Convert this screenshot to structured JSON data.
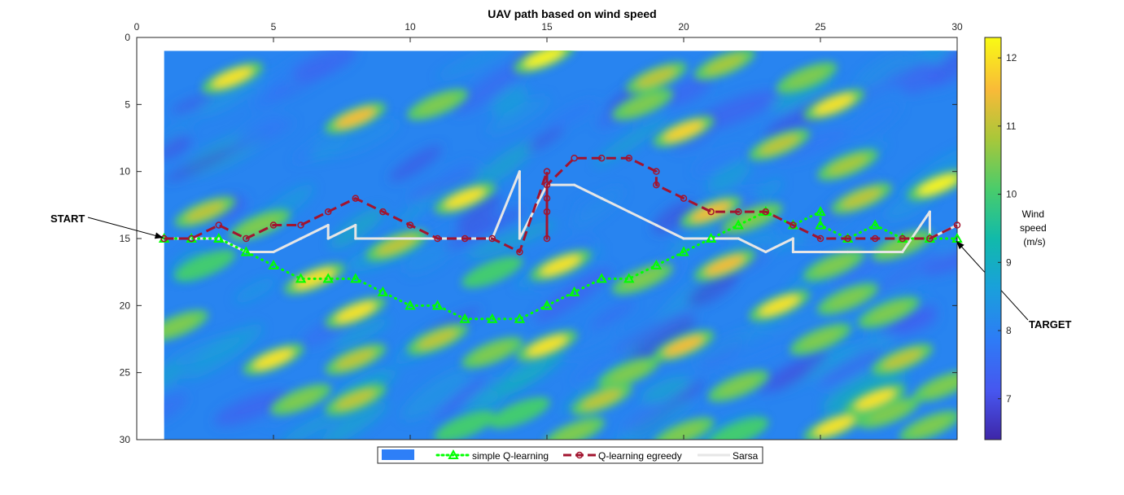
{
  "chart_data": {
    "type": "heatmap",
    "title": "UAV path based on wind speed",
    "xlim": [
      0,
      30
    ],
    "ylim": [
      0,
      30
    ],
    "y_reversed": true,
    "x_axis_location": "top",
    "x_ticks": [
      0,
      5,
      10,
      15,
      20,
      25,
      30
    ],
    "y_ticks": [
      0,
      5,
      10,
      15,
      20,
      25,
      30
    ],
    "heatmap_extent": {
      "x": [
        1,
        30
      ],
      "y": [
        1,
        30
      ]
    },
    "colorbar": {
      "label_lines": [
        "Wind",
        "speed",
        "(m/s)"
      ],
      "range": [
        6.4,
        12.3
      ],
      "ticks": [
        7,
        8,
        9,
        10,
        11,
        12
      ],
      "colormap": "parula"
    },
    "wind_hotspots": [
      {
        "x": 3.5,
        "y": 3,
        "v": 12.0
      },
      {
        "x": 14.9,
        "y": 1.5,
        "v": 12.2
      },
      {
        "x": 11,
        "y": 5,
        "v": 10.5
      },
      {
        "x": 8,
        "y": 6,
        "v": 11.5
      },
      {
        "x": 19,
        "y": 3,
        "v": 11.0
      },
      {
        "x": 21.5,
        "y": 2,
        "v": 10.8
      },
      {
        "x": 25.5,
        "y": 5,
        "v": 12.0
      },
      {
        "x": 20,
        "y": 7,
        "v": 11.8
      },
      {
        "x": 24.5,
        "y": 3,
        "v": 10.5
      },
      {
        "x": 23.5,
        "y": 8,
        "v": 11.0
      },
      {
        "x": 26,
        "y": 9.5,
        "v": 10.8
      },
      {
        "x": 29.3,
        "y": 11,
        "v": 12.2
      },
      {
        "x": 18.5,
        "y": 5,
        "v": 10.5
      },
      {
        "x": 12,
        "y": 12,
        "v": 12.0
      },
      {
        "x": 2.5,
        "y": 13,
        "v": 11.0
      },
      {
        "x": 4.5,
        "y": 14,
        "v": 10.5
      },
      {
        "x": 9.5,
        "y": 15.5,
        "v": 11.0
      },
      {
        "x": 6.5,
        "y": 18,
        "v": 12.0
      },
      {
        "x": 2.5,
        "y": 17,
        "v": 10.0
      },
      {
        "x": 15.5,
        "y": 17,
        "v": 12.0
      },
      {
        "x": 21,
        "y": 13,
        "v": 11.5
      },
      {
        "x": 22.5,
        "y": 13.5,
        "v": 10.5
      },
      {
        "x": 26.5,
        "y": 12,
        "v": 11.0
      },
      {
        "x": 21.5,
        "y": 17,
        "v": 11.5
      },
      {
        "x": 28,
        "y": 15.5,
        "v": 10.5
      },
      {
        "x": 25.5,
        "y": 17,
        "v": 10.5
      },
      {
        "x": 13,
        "y": 17.5,
        "v": 10.0
      },
      {
        "x": 8,
        "y": 20.5,
        "v": 12.0
      },
      {
        "x": 23.5,
        "y": 20,
        "v": 12.0
      },
      {
        "x": 26,
        "y": 19.5,
        "v": 10.5
      },
      {
        "x": 27.5,
        "y": 20.5,
        "v": 10.5
      },
      {
        "x": 18.5,
        "y": 18,
        "v": 10.5
      },
      {
        "x": 5,
        "y": 24,
        "v": 12.0
      },
      {
        "x": 11,
        "y": 22.5,
        "v": 11.0
      },
      {
        "x": 15,
        "y": 23,
        "v": 12.0
      },
      {
        "x": 13,
        "y": 23.5,
        "v": 10.5
      },
      {
        "x": 1.5,
        "y": 21.5,
        "v": 10.5
      },
      {
        "x": 8,
        "y": 24,
        "v": 11.0
      },
      {
        "x": 20,
        "y": 23,
        "v": 11.5
      },
      {
        "x": 25,
        "y": 22.5,
        "v": 10.5
      },
      {
        "x": 18,
        "y": 25,
        "v": 10.5
      },
      {
        "x": 22,
        "y": 26,
        "v": 10.5
      },
      {
        "x": 28,
        "y": 24,
        "v": 11.0
      },
      {
        "x": 27,
        "y": 27,
        "v": 12.0
      },
      {
        "x": 29.5,
        "y": 26,
        "v": 10.5
      },
      {
        "x": 6,
        "y": 27,
        "v": 10.5
      },
      {
        "x": 8,
        "y": 27,
        "v": 11.0
      },
      {
        "x": 17,
        "y": 27,
        "v": 11.0
      },
      {
        "x": 25.5,
        "y": 29,
        "v": 12.0
      },
      {
        "x": 16,
        "y": 29.5,
        "v": 10.5
      },
      {
        "x": 20,
        "y": 29.5,
        "v": 10.5
      },
      {
        "x": 29,
        "y": 29,
        "v": 10.5
      },
      {
        "x": 14,
        "y": 28,
        "v": 10.0
      },
      {
        "x": 27.5,
        "y": 28,
        "v": 10.5
      },
      {
        "x": 12,
        "y": 29,
        "v": 10.0
      },
      {
        "x": 22,
        "y": 29.5,
        "v": 10.0
      }
    ],
    "series": [
      {
        "name": "simple Q-learning",
        "color": "#00ff00",
        "style": "dotted",
        "marker": "triangle",
        "points": [
          [
            1,
            15
          ],
          [
            2,
            15
          ],
          [
            3,
            15
          ],
          [
            4,
            16
          ],
          [
            5,
            17
          ],
          [
            6,
            18
          ],
          [
            7,
            18
          ],
          [
            8,
            18
          ],
          [
            9,
            19
          ],
          [
            10,
            20
          ],
          [
            11,
            20
          ],
          [
            12,
            21
          ],
          [
            13,
            21
          ],
          [
            14,
            21
          ],
          [
            15,
            20
          ],
          [
            16,
            19
          ],
          [
            17,
            18
          ],
          [
            18,
            18
          ],
          [
            19,
            17
          ],
          [
            20,
            16
          ],
          [
            21,
            15
          ],
          [
            22,
            14
          ],
          [
            23,
            13
          ],
          [
            24,
            14
          ],
          [
            25,
            13
          ],
          [
            25,
            14
          ],
          [
            26,
            15
          ],
          [
            27,
            14
          ],
          [
            28,
            15
          ],
          [
            29,
            15
          ],
          [
            30,
            15
          ]
        ]
      },
      {
        "name": "Q-learning egreedy",
        "color": "#a2142f",
        "style": "dashed",
        "marker": "hexagram",
        "points": [
          [
            1,
            15
          ],
          [
            2,
            15
          ],
          [
            3,
            14
          ],
          [
            4,
            15
          ],
          [
            5,
            14
          ],
          [
            6,
            14
          ],
          [
            7,
            13
          ],
          [
            8,
            12
          ],
          [
            9,
            13
          ],
          [
            10,
            14
          ],
          [
            11,
            15
          ],
          [
            12,
            15
          ],
          [
            13,
            15
          ],
          [
            14,
            16
          ],
          [
            15,
            10
          ],
          [
            15,
            12
          ],
          [
            15,
            15
          ],
          [
            15,
            13
          ],
          [
            15,
            11
          ],
          [
            16,
            9
          ],
          [
            17,
            9
          ],
          [
            18,
            9
          ],
          [
            19,
            10
          ],
          [
            19,
            11
          ],
          [
            20,
            12
          ],
          [
            21,
            13
          ],
          [
            22,
            13
          ],
          [
            23,
            13
          ],
          [
            24,
            14
          ],
          [
            25,
            15
          ],
          [
            26,
            15
          ],
          [
            27,
            15
          ],
          [
            28,
            15
          ],
          [
            29,
            15
          ],
          [
            30,
            14
          ]
        ]
      },
      {
        "name": "Sarsa",
        "color": "#e6e6e6",
        "style": "solid",
        "marker": "point",
        "points": [
          [
            1,
            15
          ],
          [
            2,
            15
          ],
          [
            3,
            15
          ],
          [
            4,
            16
          ],
          [
            5,
            16
          ],
          [
            6,
            15
          ],
          [
            7,
            14
          ],
          [
            7,
            15
          ],
          [
            8,
            14
          ],
          [
            8,
            15
          ],
          [
            9,
            15
          ],
          [
            10,
            15
          ],
          [
            11,
            15
          ],
          [
            12,
            15
          ],
          [
            13,
            15
          ],
          [
            14,
            10
          ],
          [
            14,
            15
          ],
          [
            15,
            11
          ],
          [
            16,
            11
          ],
          [
            17,
            12
          ],
          [
            18,
            13
          ],
          [
            19,
            14
          ],
          [
            20,
            15
          ],
          [
            21,
            15
          ],
          [
            22,
            15
          ],
          [
            23,
            16
          ],
          [
            24,
            15
          ],
          [
            24,
            16
          ],
          [
            25,
            16
          ],
          [
            26,
            16
          ],
          [
            27,
            16
          ],
          [
            28,
            16
          ],
          [
            29,
            13
          ],
          [
            29,
            15
          ],
          [
            30,
            14
          ]
        ]
      }
    ],
    "annotations": [
      {
        "text": "START",
        "point": [
          1,
          15
        ]
      },
      {
        "text": "TARGET",
        "point": [
          30,
          15
        ]
      }
    ],
    "legend": {
      "placement": "bottom-center",
      "first_entry_label": ""
    }
  }
}
